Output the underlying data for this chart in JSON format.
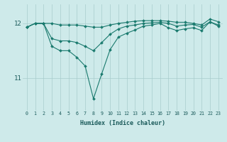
{
  "xlabel": "Humidex (Indice chaleur)",
  "x": [
    0,
    1,
    2,
    3,
    4,
    5,
    6,
    7,
    8,
    9,
    10,
    11,
    12,
    13,
    14,
    15,
    16,
    17,
    18,
    19,
    20,
    21,
    22,
    23
  ],
  "series": [
    [
      11.93,
      12.0,
      12.0,
      12.0,
      11.97,
      11.97,
      11.97,
      11.95,
      11.93,
      11.93,
      11.97,
      12.0,
      12.02,
      12.04,
      12.05,
      12.05,
      12.05,
      12.04,
      12.02,
      12.02,
      12.0,
      11.97,
      12.08,
      12.03
    ],
    [
      11.93,
      12.0,
      12.0,
      11.72,
      11.68,
      11.68,
      11.65,
      11.58,
      11.5,
      11.65,
      11.8,
      11.9,
      11.95,
      11.97,
      12.0,
      12.01,
      12.02,
      12.0,
      11.95,
      11.97,
      11.98,
      11.93,
      12.03,
      11.97
    ],
    [
      11.93,
      12.0,
      12.0,
      11.58,
      11.5,
      11.5,
      11.38,
      11.22,
      10.62,
      11.08,
      11.52,
      11.75,
      11.82,
      11.88,
      11.95,
      11.97,
      12.0,
      11.92,
      11.87,
      11.9,
      11.92,
      11.87,
      12.03,
      11.95
    ]
  ],
  "line_color": "#1a7a6e",
  "marker": "D",
  "marker_size": 2.0,
  "bg_color": "#ceeaea",
  "grid_color": "#a8cccc",
  "text_color": "#1a5a5a",
  "ylim": [
    10.4,
    12.35
  ],
  "yticks": [
    11,
    12
  ],
  "linewidth": 0.8
}
